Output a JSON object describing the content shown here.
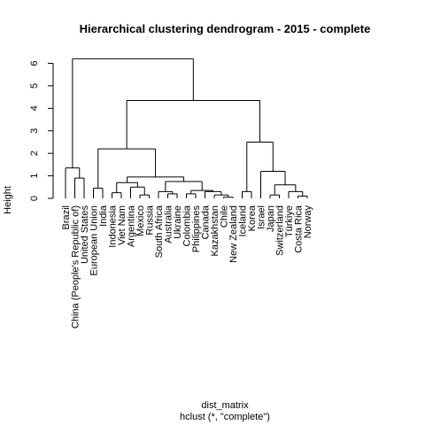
{
  "chart_data": {
    "type": "dendrogram",
    "title": "Hierarchical clustering dendrogram - 2015 - complete",
    "xlabel": "dist_matrix",
    "subtitle": "hclust (*, \"complete\")",
    "ylabel": "Height",
    "ylim": [
      0,
      6.5
    ],
    "yticks": [
      0,
      1,
      2,
      3,
      4,
      5,
      6
    ],
    "leaves": [
      "Brazil",
      "China (People's Republic of)",
      "United States",
      "European Union",
      "India",
      "Indonesia",
      "Viet Nam",
      "Argentina",
      "Mexico",
      "Russia",
      "South Africa",
      "Australia",
      "Ukraine",
      "Colombia",
      "Philippines",
      "Canada",
      "Kazakhstan",
      "Chile",
      "New Zealand",
      "Iceland",
      "Korea",
      "Israel",
      "Japan",
      "Switzerland",
      "Türkiye",
      "Costa Rica",
      "Norway"
    ],
    "merges": [
      {
        "id": "m1",
        "left": "L:China (People's Republic of)",
        "right": "L:United States",
        "height": 0.9
      },
      {
        "id": "m2",
        "left": "L:Brazil",
        "right": "m1",
        "height": 1.35
      },
      {
        "id": "m3",
        "left": "L:European Union",
        "right": "L:India",
        "height": 0.45
      },
      {
        "id": "m4",
        "left": "L:Indonesia",
        "right": "L:Viet Nam",
        "height": 0.25
      },
      {
        "id": "m5",
        "left": "L:Mexico",
        "right": "L:Russia",
        "height": 0.15
      },
      {
        "id": "m6",
        "left": "L:Argentina",
        "right": "m5",
        "height": 0.5
      },
      {
        "id": "m7",
        "left": "m4",
        "right": "m6",
        "height": 0.7
      },
      {
        "id": "m8",
        "left": "L:Australia",
        "right": "L:Ukraine",
        "height": 0.2
      },
      {
        "id": "m9",
        "left": "L:South Africa",
        "right": "m8",
        "height": 0.3
      },
      {
        "id": "m10",
        "left": "L:Chile",
        "right": "L:New Zealand",
        "height": 0.05
      },
      {
        "id": "m11",
        "left": "L:Kazakhstan",
        "right": "m10",
        "height": 0.15
      },
      {
        "id": "m12",
        "left": "L:Canada",
        "right": "m11",
        "height": 0.3
      },
      {
        "id": "m13",
        "left": "L:Colombia",
        "right": "L:Philippines",
        "height": 0.2
      },
      {
        "id": "m14",
        "left": "m13",
        "right": "m12",
        "height": 0.35
      },
      {
        "id": "m15",
        "left": "m9",
        "right": "m14",
        "height": 0.75
      },
      {
        "id": "m16",
        "left": "m7",
        "right": "m15",
        "height": 0.95
      },
      {
        "id": "m17",
        "left": "m3",
        "right": "m16",
        "height": 2.2
      },
      {
        "id": "m18",
        "left": "L:Iceland",
        "right": "L:Korea",
        "height": 0.3
      },
      {
        "id": "m19",
        "left": "L:Costa Rica",
        "right": "L:Norway",
        "height": 0.1
      },
      {
        "id": "m20",
        "left": "L:Türkiye",
        "right": "m19",
        "height": 0.3
      },
      {
        "id": "m21",
        "left": "L:Switzerland",
        "right": "m20",
        "height": 0.6
      },
      {
        "id": "m22",
        "left": "L:Japan",
        "right": "L:Switzerland",
        "height": 0.15
      },
      {
        "id": "m23",
        "left": "L:Israel",
        "right": "m21b",
        "height": 1.2
      },
      {
        "id": "m24",
        "left": "m18",
        "right": "m23",
        "height": 2.5
      },
      {
        "id": "m25",
        "left": "m17",
        "right": "m24",
        "height": 4.35
      },
      {
        "id": "m26",
        "left": "m2",
        "right": "m25",
        "height": 6.2
      }
    ],
    "merge_overrides": {
      "m21": {
        "left": "m22",
        "right": "m20",
        "height": 0.6
      },
      "m23": {
        "left": "L:Israel",
        "right": "m21",
        "height": 1.2
      }
    }
  }
}
